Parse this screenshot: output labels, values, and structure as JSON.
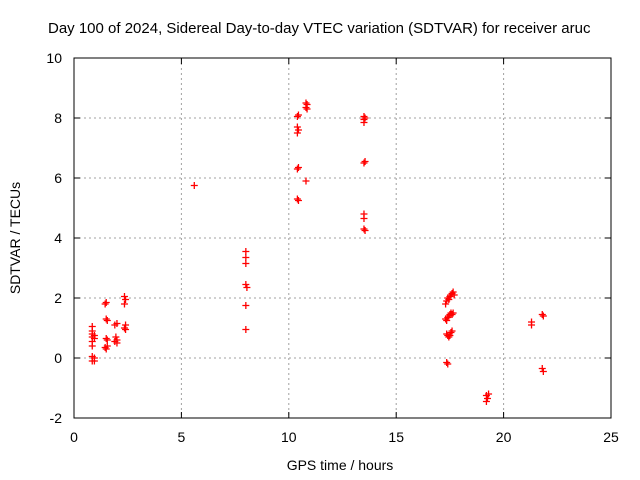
{
  "chart_data": {
    "type": "scatter",
    "title": "Day 100 of 2024, Sidereal Day-to-day VTEC variation (SDTVAR) for receiver aruc",
    "xlabel": "GPS time / hours",
    "ylabel": "SDTVAR / TECUs",
    "xlim": [
      0,
      25
    ],
    "ylim": [
      -2,
      10
    ],
    "xticks": [
      0,
      5,
      10,
      15,
      20,
      25
    ],
    "yticks": [
      -2,
      0,
      2,
      4,
      6,
      8,
      10
    ],
    "grid": true,
    "marker": "plus",
    "color": "#ff0000",
    "points": [
      [
        0.85,
        1.05
      ],
      [
        0.85,
        0.9
      ],
      [
        0.85,
        0.8
      ],
      [
        0.85,
        0.7
      ],
      [
        0.85,
        0.55
      ],
      [
        0.85,
        0.4
      ],
      [
        0.85,
        0.05
      ],
      [
        0.85,
        -0.1
      ],
      [
        0.95,
        0.75
      ],
      [
        0.95,
        0.65
      ],
      [
        0.95,
        0.0
      ],
      [
        0.95,
        -0.1
      ],
      [
        1.45,
        1.8
      ],
      [
        1.5,
        1.85
      ],
      [
        1.5,
        1.3
      ],
      [
        1.55,
        1.25
      ],
      [
        1.5,
        0.65
      ],
      [
        1.55,
        0.6
      ],
      [
        1.45,
        0.35
      ],
      [
        1.5,
        0.3
      ],
      [
        1.55,
        0.4
      ],
      [
        1.9,
        1.1
      ],
      [
        2.0,
        1.15
      ],
      [
        1.95,
        0.7
      ],
      [
        2.0,
        0.6
      ],
      [
        1.9,
        0.55
      ],
      [
        2.0,
        0.5
      ],
      [
        2.35,
        2.05
      ],
      [
        2.4,
        1.95
      ],
      [
        2.35,
        1.8
      ],
      [
        2.4,
        1.1
      ],
      [
        2.35,
        1.0
      ],
      [
        2.4,
        0.95
      ],
      [
        5.6,
        5.75
      ],
      [
        8.0,
        3.55
      ],
      [
        8.0,
        3.35
      ],
      [
        8.0,
        3.15
      ],
      [
        8.0,
        2.45
      ],
      [
        8.05,
        2.35
      ],
      [
        8.0,
        1.75
      ],
      [
        8.0,
        0.95
      ],
      [
        10.4,
        8.05
      ],
      [
        10.45,
        8.1
      ],
      [
        10.4,
        7.7
      ],
      [
        10.45,
        7.6
      ],
      [
        10.4,
        7.5
      ],
      [
        10.4,
        6.3
      ],
      [
        10.45,
        6.35
      ],
      [
        10.4,
        5.3
      ],
      [
        10.45,
        5.25
      ],
      [
        10.8,
        8.5
      ],
      [
        10.85,
        8.45
      ],
      [
        10.8,
        8.35
      ],
      [
        10.85,
        8.3
      ],
      [
        10.8,
        5.9
      ],
      [
        13.5,
        8.05
      ],
      [
        13.55,
        8.0
      ],
      [
        13.5,
        7.95
      ],
      [
        13.5,
        7.85
      ],
      [
        13.5,
        6.5
      ],
      [
        13.55,
        6.55
      ],
      [
        13.5,
        4.8
      ],
      [
        13.5,
        4.65
      ],
      [
        13.5,
        4.3
      ],
      [
        13.55,
        4.25
      ],
      [
        17.3,
        1.8
      ],
      [
        17.35,
        1.9
      ],
      [
        17.4,
        2.0
      ],
      [
        17.45,
        1.95
      ],
      [
        17.5,
        2.05
      ],
      [
        17.55,
        2.1
      ],
      [
        17.6,
        2.15
      ],
      [
        17.65,
        2.2
      ],
      [
        17.7,
        2.1
      ],
      [
        17.3,
        1.3
      ],
      [
        17.35,
        1.25
      ],
      [
        17.4,
        1.35
      ],
      [
        17.45,
        1.4
      ],
      [
        17.5,
        1.45
      ],
      [
        17.55,
        1.5
      ],
      [
        17.6,
        1.45
      ],
      [
        17.65,
        1.5
      ],
      [
        17.35,
        0.8
      ],
      [
        17.4,
        0.75
      ],
      [
        17.45,
        0.7
      ],
      [
        17.5,
        0.75
      ],
      [
        17.55,
        0.85
      ],
      [
        17.6,
        0.9
      ],
      [
        17.35,
        -0.15
      ],
      [
        17.4,
        -0.2
      ],
      [
        19.2,
        -1.25
      ],
      [
        19.25,
        -1.35
      ],
      [
        19.3,
        -1.2
      ],
      [
        19.2,
        -1.45
      ],
      [
        21.3,
        1.2
      ],
      [
        21.3,
        1.1
      ],
      [
        21.8,
        1.45
      ],
      [
        21.85,
        1.4
      ],
      [
        21.8,
        -0.35
      ],
      [
        21.85,
        -0.45
      ]
    ]
  }
}
